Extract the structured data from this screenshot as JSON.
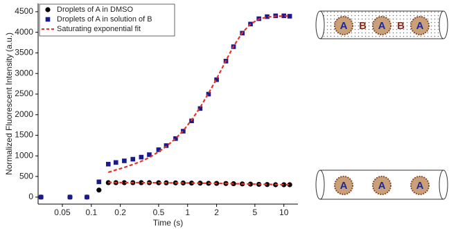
{
  "chart_data": {
    "type": "line",
    "x_label": "Time (s)",
    "y_label": "Normalized Fluorescent Intensity (a.u.)",
    "xscale": "log",
    "xlim": [
      0.028,
      14
    ],
    "ylim": [
      -170,
      4700
    ],
    "xticks": [
      0.05,
      0.1,
      0.2,
      0.5,
      1,
      2,
      5,
      10
    ],
    "yticks": [
      0,
      500,
      1000,
      1500,
      2000,
      2500,
      3000,
      3500,
      4000,
      4500
    ],
    "legend": "upper left",
    "series": [
      {
        "name": "Droplets of A in DMSO",
        "color": "#000000",
        "marker": "circle",
        "x": [
          0.03,
          0.06,
          0.09,
          0.12,
          0.15,
          0.18,
          0.22,
          0.27,
          0.33,
          0.4,
          0.5,
          0.6,
          0.75,
          0.9,
          1.1,
          1.35,
          1.65,
          2,
          2.5,
          3,
          3.7,
          4.5,
          5.5,
          6.7,
          8.2,
          10,
          11.5
        ],
        "values": [
          0,
          0,
          0,
          170,
          350,
          350,
          350,
          350,
          350,
          350,
          348,
          346,
          345,
          342,
          340,
          338,
          335,
          333,
          330,
          325,
          320,
          315,
          310,
          305,
          300,
          300,
          300
        ]
      },
      {
        "name": "Droplets of A in solution of B",
        "color": "#1a1a8c",
        "marker": "square",
        "x": [
          0.03,
          0.06,
          0.09,
          0.12,
          0.15,
          0.18,
          0.22,
          0.27,
          0.33,
          0.4,
          0.5,
          0.6,
          0.75,
          0.9,
          1.1,
          1.35,
          1.65,
          2,
          2.5,
          3,
          3.7,
          4.5,
          5.5,
          6.7,
          8.2,
          10,
          11.5
        ],
        "values": [
          0,
          0,
          0,
          370,
          800,
          840,
          880,
          920,
          970,
          1030,
          1150,
          1250,
          1420,
          1600,
          1850,
          2150,
          2500,
          2850,
          3300,
          3650,
          3980,
          4200,
          4330,
          4380,
          4400,
          4400,
          4390
        ]
      },
      {
        "name": "Saturating exponential fit",
        "color": "#e8302a",
        "marker": "dashed",
        "x": [
          0.15,
          0.18,
          0.22,
          0.27,
          0.33,
          0.4,
          0.5,
          0.6,
          0.75,
          0.9,
          1.1,
          1.35,
          1.65,
          2,
          2.5,
          3,
          3.7,
          4.5,
          5.5,
          6.7,
          8.2,
          10,
          11.5
        ],
        "values": [
          600,
          660,
          720,
          790,
          870,
          960,
          1100,
          1230,
          1420,
          1610,
          1870,
          2180,
          2520,
          2870,
          3310,
          3660,
          3990,
          4200,
          4320,
          4370,
          4390,
          4395,
          4395
        ]
      },
      {
        "color": "#e8302a",
        "marker": "dashed",
        "x": [
          0.15,
          0.2,
          0.3,
          0.5,
          0.8,
          1.2,
          2,
          3,
          5,
          8,
          11.5
        ],
        "values": [
          355,
          353,
          351,
          348,
          344,
          340,
          333,
          325,
          315,
          305,
          300
        ]
      }
    ]
  },
  "diagram": {
    "top_labels": [
      "A",
      "B",
      "A",
      "B",
      "A"
    ],
    "bottom_labels": [
      "A",
      "A",
      "A"
    ]
  }
}
